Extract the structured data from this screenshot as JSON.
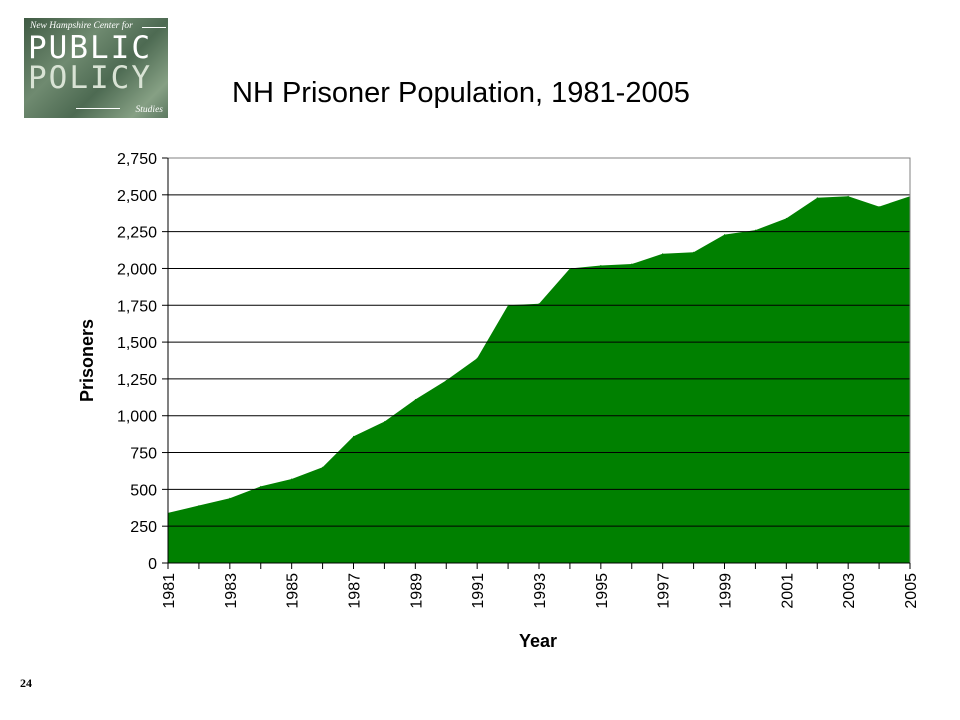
{
  "logo": {
    "org_line": "New Hampshire Center for",
    "word1": "PUBLIC",
    "word2": "POLICY",
    "word3": "Studies"
  },
  "page_number": "24",
  "colors": {
    "area_fill": "#008000",
    "gridline": "#000000",
    "background": "#ffffff"
  },
  "chart_data": {
    "type": "area",
    "title": "NH Prisoner Population, 1981-2005",
    "xlabel": "Year",
    "ylabel": "Prisoners",
    "x": [
      1981,
      1982,
      1983,
      1984,
      1985,
      1986,
      1987,
      1988,
      1989,
      1990,
      1991,
      1992,
      1993,
      1994,
      1995,
      1996,
      1997,
      1998,
      1999,
      2000,
      2001,
      2002,
      2003,
      2004,
      2005
    ],
    "values": [
      340,
      390,
      440,
      520,
      570,
      650,
      860,
      960,
      1110,
      1240,
      1390,
      1750,
      1760,
      2000,
      2020,
      2030,
      2100,
      2110,
      2230,
      2260,
      2340,
      2480,
      2490,
      2420,
      2490
    ],
    "x_tick_labels": [
      "1981",
      "1983",
      "1985",
      "1987",
      "1989",
      "1991",
      "1993",
      "1995",
      "1997",
      "1999",
      "2001",
      "2003",
      "2005"
    ],
    "y_tick_labels": [
      "0",
      "250",
      "500",
      "750",
      "1,000",
      "1,250",
      "1,500",
      "1,750",
      "2,000",
      "2,250",
      "2,500",
      "2,750"
    ],
    "ylim": [
      0,
      2750
    ],
    "xlim": [
      1981,
      2005
    ],
    "grid": true,
    "legend": "none"
  }
}
